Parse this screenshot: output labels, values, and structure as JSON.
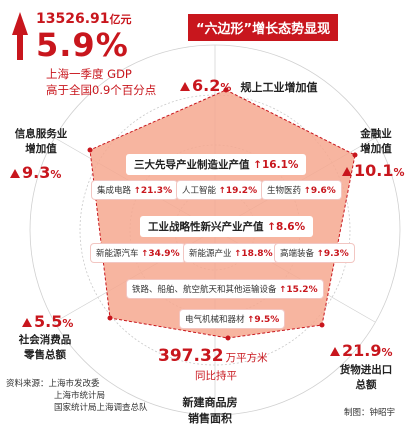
{
  "header": {
    "gdp_total": "13526.91",
    "gdp_unit": "亿元",
    "gdp_growth": "5.9%",
    "caption_line1": "上海一季度 GDP",
    "caption_line2": "高于全国0.9个百分点",
    "badge_title": "“六边形”增长态势显现"
  },
  "vertices": {
    "top": {
      "value": "6.2",
      "unit": "%",
      "label": "规上工业增加值"
    },
    "left_upper": {
      "label_line1": "信息服务业",
      "label_line2": "增加值",
      "value": "9.3",
      "unit": "%"
    },
    "right_upper": {
      "label_line1": "金融业",
      "label_line2": "增加值",
      "value": "10.1",
      "unit": "%"
    },
    "left_lower": {
      "value": "5.5",
      "unit": "%",
      "label_line1": "社会消费品",
      "label_line2": "零售总额"
    },
    "right_lower": {
      "value": "21.9",
      "unit": "%",
      "label_line1": "货物进出口",
      "label_line2": "总额"
    },
    "bottom": {
      "value": "397.32",
      "unit": "万平方米",
      "sub": "同比持平",
      "label_line1": "新建商品房",
      "label_line2": "销售面积"
    }
  },
  "industries": {
    "three_leading": {
      "title": "三大先导产业制造业产值",
      "value": "16.1",
      "unit": "%"
    },
    "three_items": [
      {
        "name": "集成电路",
        "value": "21.3",
        "unit": "%"
      },
      {
        "name": "人工智能",
        "value": "19.2",
        "unit": "%"
      },
      {
        "name": "生物医药",
        "value": "9.6",
        "unit": "%"
      }
    ],
    "strategic": {
      "title": "工业战略性新兴产业产值",
      "value": "8.6",
      "unit": "%"
    },
    "strategic_items": [
      {
        "name": "新能源汽车",
        "value": "34.9",
        "unit": "%"
      },
      {
        "name": "新能源产业",
        "value": "18.8",
        "unit": "%"
      },
      {
        "name": "高端装备",
        "value": "9.3",
        "unit": "%"
      }
    ],
    "rail": {
      "name": "铁路、船舶、航空航天和其他运输设备",
      "value": "15.2",
      "unit": "%"
    },
    "electric": {
      "name": "电气机械和器材",
      "value": "9.5",
      "unit": "%"
    }
  },
  "footer": {
    "source_label": "资料来源：",
    "sources": [
      "上海市发改委",
      "上海市统计局",
      "国家统计局上海调查总队"
    ],
    "credit": "制图：钟昭宇"
  },
  "colors": {
    "accent": "#c8161d",
    "hex_fill": "#f6a88f",
    "ring": "#bdbdbd"
  }
}
